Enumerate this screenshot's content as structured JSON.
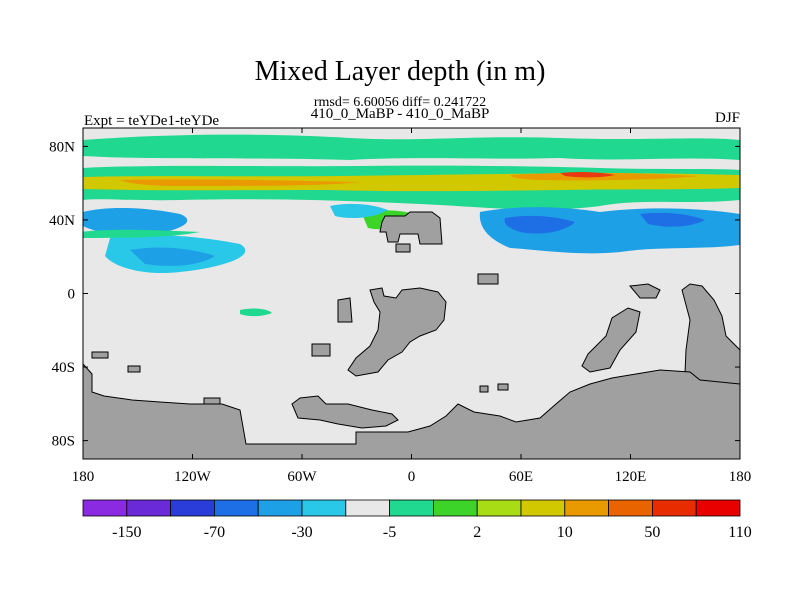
{
  "chart_data": {
    "type": "contour-map",
    "title": "Mixed Layer depth (in m)",
    "stats": "rmsd= 6.60056 diff= 0.241722",
    "cases": "410_0_MaBP - 410_0_MaBP",
    "experiment": "Expt = teYDe1-teYDe",
    "season": "DJF",
    "x_ticks": [
      "180",
      "120W",
      "60W",
      "0",
      "60E",
      "120E",
      "180"
    ],
    "x_tick_values": [
      -180,
      -120,
      -60,
      0,
      60,
      120,
      180
    ],
    "y_ticks": [
      "80N",
      "40N",
      "0",
      "40S",
      "80S"
    ],
    "y_tick_values": [
      80,
      40,
      0,
      -40,
      -80
    ],
    "xlim": [
      -180,
      180
    ],
    "ylim": [
      -90,
      90
    ],
    "colorbar_levels": [
      "-150",
      "-70",
      "-30",
      "-5",
      "2",
      "10",
      "50",
      "110"
    ],
    "colorbar_colors": [
      "#8a2be2",
      "#6a2ad8",
      "#2a3dd8",
      "#1e6ee6",
      "#1ea0e6",
      "#2ac8e8",
      "#e8e8e8",
      "#20d890",
      "#3cd428",
      "#a8dc14",
      "#d2c800",
      "#e89a00",
      "#e86400",
      "#e82c00",
      "#e80000"
    ],
    "land_color": "#a0a0a0",
    "ocean_color": "#e8e8e8"
  }
}
